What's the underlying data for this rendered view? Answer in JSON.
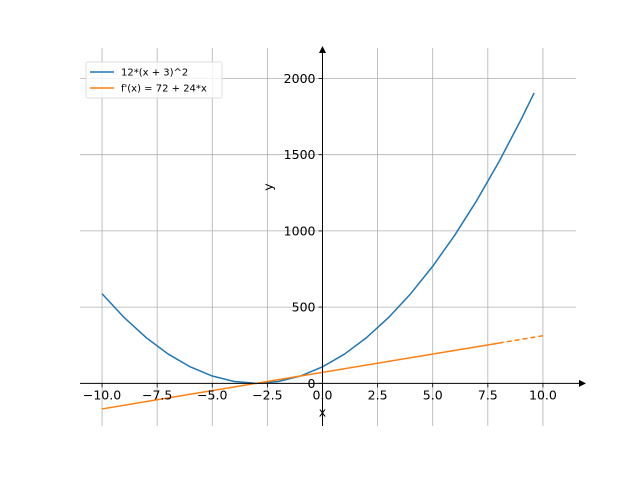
{
  "chart_data": {
    "type": "line",
    "title": "",
    "xlabel": "x",
    "ylabel": "y",
    "xlim": [
      -11.0,
      11.5
    ],
    "ylim": [
      -280,
      2200
    ],
    "grid": true,
    "legend_position": "top-left",
    "x_ticks": [
      -10.0,
      -7.5,
      -5.0,
      -2.5,
      0.0,
      2.5,
      5.0,
      7.5,
      10.0
    ],
    "x_tick_labels": [
      "−10.0",
      "−7.5",
      "−5.0",
      "−2.5",
      "0.0",
      "2.5",
      "5.0",
      "7.5",
      "10.0"
    ],
    "y_ticks": [
      0,
      500,
      1000,
      1500,
      2000
    ],
    "y_tick_labels": [
      "0",
      "500",
      "1000",
      "1500",
      "2000"
    ],
    "series": [
      {
        "name": "12*(x + 3)^2",
        "color": "#1f77b4",
        "style": "solid",
        "x": [
          -10,
          -9,
          -8,
          -7,
          -6,
          -5,
          -4,
          -3,
          -2,
          -1,
          0,
          1,
          2,
          3,
          4,
          5,
          6,
          7,
          8,
          9,
          9.6
        ],
        "y": [
          588,
          432,
          300,
          192,
          108,
          48,
          12,
          0,
          12,
          48,
          108,
          192,
          300,
          432,
          588,
          768,
          972,
          1200,
          1452,
          1728,
          1905
        ]
      },
      {
        "name": "f'(x) = 72 + 24*x",
        "color": "#ff7f0e",
        "style": "solid-then-dashed",
        "dash_from_x": 8,
        "x": [
          -10,
          8,
          10
        ],
        "y": [
          -168,
          264,
          312
        ]
      }
    ]
  }
}
